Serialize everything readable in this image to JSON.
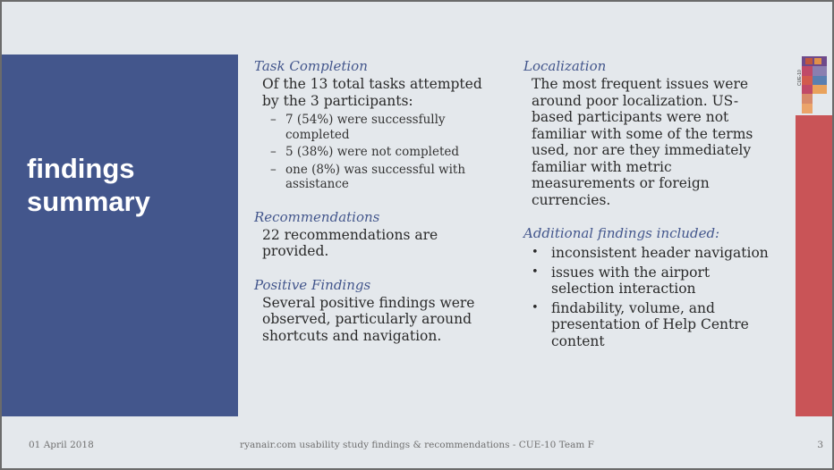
{
  "slide": {
    "title_line1": "findings",
    "title_line2": "summary",
    "colors": {
      "panel": "#43568c",
      "accent_bar": "#c95457",
      "heading": "#43568c"
    }
  },
  "task_completion": {
    "heading": "Task Completion",
    "text": "Of the 13 total tasks attempted by the 3 participants:",
    "items": [
      "7 (54%) were successfully completed",
      "5 (38%) were not completed",
      "one (8%) was successful with assistance"
    ]
  },
  "recommendations": {
    "heading": "Recommendations",
    "text": "22 recommendations are provided."
  },
  "positive": {
    "heading": "Positive Findings",
    "text": "Several positive findings were observed, particularly around shortcuts and navigation."
  },
  "localization": {
    "heading": "Localization",
    "text": "The most frequent issues were around poor localization. US-based participants were not familiar with some of the terms used, nor are they immediately familiar with metric measurements or foreign currencies."
  },
  "additional": {
    "heading": "Additional findings included:",
    "items": [
      "inconsistent header navigation",
      "issues with the airport selection interaction",
      "findability, volume, and presentation of Help Centre content"
    ]
  },
  "logo": {
    "label": "CUE-10"
  },
  "footer": {
    "date": "01 April 2018",
    "center": "ryanair.com usability study findings & recommendations - CUE-10 Team F",
    "page": "3"
  }
}
